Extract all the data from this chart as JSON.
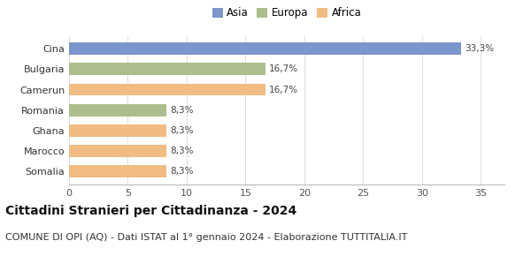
{
  "categories": [
    "Somalia",
    "Marocco",
    "Ghana",
    "Romania",
    "Camerun",
    "Bulgaria",
    "Cina"
  ],
  "values": [
    8.3,
    8.3,
    8.3,
    8.3,
    16.7,
    16.7,
    33.3
  ],
  "labels": [
    "8,3%",
    "8,3%",
    "8,3%",
    "8,3%",
    "16,7%",
    "16,7%",
    "33,3%"
  ],
  "colors": [
    "#F0BC82",
    "#F0BC82",
    "#F0BC82",
    "#ABBE8C",
    "#F0BC82",
    "#ABBE8C",
    "#7B96CC"
  ],
  "legend": [
    {
      "label": "Asia",
      "color": "#7B96CC"
    },
    {
      "label": "Europa",
      "color": "#ABBE8C"
    },
    {
      "label": "Africa",
      "color": "#F0BC82"
    }
  ],
  "xlim": [
    0,
    37
  ],
  "xticks": [
    0,
    5,
    10,
    15,
    20,
    25,
    30,
    35
  ],
  "title": "Cittadini Stranieri per Cittadinanza - 2024",
  "subtitle": "COMUNE DI OPI (AQ) - Dati ISTAT al 1° gennaio 2024 - Elaborazione TUTTITALIA.IT",
  "background_color": "#ffffff",
  "bar_height": 0.6,
  "title_fontsize": 10,
  "subtitle_fontsize": 8,
  "label_fontsize": 7.5,
  "tick_fontsize": 8,
  "legend_fontsize": 8.5
}
